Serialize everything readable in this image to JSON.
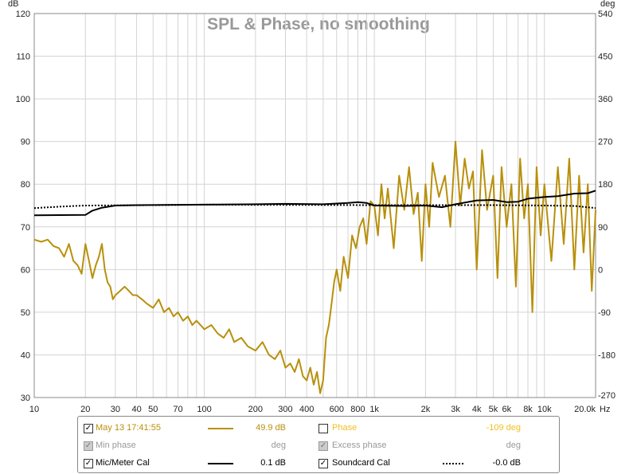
{
  "chart_data": {
    "type": "line",
    "title": "SPL & Phase, no smoothing",
    "xlabel": "Hz",
    "ylabel": "dB",
    "y2label": "deg",
    "xscale": "log",
    "xlim": [
      10,
      20000
    ],
    "ylim": [
      30,
      120
    ],
    "y2lim": [
      -270,
      540
    ],
    "grid": true,
    "x_ticks": [
      10,
      20,
      30,
      40,
      50,
      70,
      100,
      200,
      300,
      400,
      600,
      800,
      1000,
      2000,
      3000,
      4000,
      5000,
      6000,
      8000,
      10000,
      20000
    ],
    "x_tick_labels": [
      "10",
      "20",
      "30",
      "40",
      "50",
      "70",
      "100",
      "200",
      "300",
      "400",
      "600",
      "800",
      "1k",
      "2k",
      "3k",
      "4k",
      "5k",
      "6k",
      "8k",
      "10k",
      "20.0k"
    ],
    "y_ticks": [
      30,
      40,
      50,
      60,
      70,
      80,
      90,
      100,
      110,
      120
    ],
    "y2_ticks": [
      -270,
      -180,
      -90,
      0,
      90,
      180,
      270,
      360,
      450,
      540
    ],
    "colors": {
      "spl": "#b8900c",
      "cal": "#000000",
      "soundcard": "#000000",
      "phase_label": "#f0c020"
    },
    "series": [
      {
        "name": "May 13 17:41:55",
        "style": "solid",
        "color": "#b8900c",
        "x": [
          10,
          11,
          12,
          13,
          14,
          15,
          16,
          17,
          18,
          19,
          20,
          21,
          22,
          23,
          24,
          25,
          26,
          27,
          28,
          29,
          30,
          32,
          34,
          36,
          38,
          40,
          43,
          46,
          50,
          54,
          58,
          62,
          66,
          70,
          75,
          80,
          85,
          90,
          100,
          110,
          120,
          130,
          140,
          150,
          165,
          180,
          200,
          220,
          240,
          260,
          280,
          300,
          320,
          340,
          360,
          380,
          400,
          420,
          440,
          460,
          480,
          500,
          520,
          540,
          560,
          580,
          600,
          630,
          660,
          700,
          740,
          780,
          820,
          860,
          900,
          950,
          1000,
          1050,
          1100,
          1150,
          1200,
          1300,
          1400,
          1500,
          1600,
          1700,
          1800,
          1900,
          2000,
          2100,
          2200,
          2400,
          2600,
          2800,
          3000,
          3200,
          3400,
          3600,
          3800,
          4000,
          4300,
          4600,
          5000,
          5300,
          5600,
          6000,
          6400,
          6800,
          7200,
          7600,
          8000,
          8500,
          9000,
          9500,
          10000,
          11000,
          12000,
          13000,
          14000,
          15000,
          16000,
          17000,
          18000,
          19000,
          20000
        ],
        "values": [
          67,
          66.5,
          67,
          65.5,
          65,
          63,
          66,
          62,
          61,
          59,
          66,
          62,
          58,
          61,
          63,
          66,
          60,
          57,
          56,
          53,
          54,
          55,
          56,
          55,
          54,
          54,
          53,
          52,
          51,
          53,
          50,
          51,
          49,
          50,
          48,
          49,
          47,
          48,
          46,
          47,
          45,
          44,
          46,
          43,
          44,
          42,
          41,
          43,
          40,
          39,
          41,
          37,
          38,
          36,
          39,
          35,
          34,
          37,
          33,
          36,
          31,
          34,
          44,
          47,
          52,
          57,
          60,
          55,
          63,
          58,
          68,
          65,
          70,
          72,
          66,
          76,
          75,
          68,
          80,
          72,
          79,
          65,
          82,
          74,
          84,
          73,
          78,
          62,
          80,
          70,
          85,
          77,
          82,
          70,
          90,
          75,
          86,
          79,
          83,
          60,
          88,
          74,
          82,
          58,
          84,
          70,
          80,
          56,
          86,
          72,
          80,
          50,
          84,
          68,
          80,
          62,
          84,
          66,
          86,
          60,
          82,
          64,
          80,
          55,
          74
        ]
      },
      {
        "name": "Mic/Meter Cal",
        "style": "solid",
        "color": "#000000",
        "x": [
          10,
          20,
          22,
          25,
          30,
          40,
          100,
          200,
          300,
          500,
          700,
          800,
          900,
          1000,
          1500,
          2000,
          2500,
          3000,
          4000,
          5000,
          6000,
          7000,
          8000,
          10000,
          12000,
          15000,
          18000,
          20000
        ],
        "values": [
          72.7,
          72.8,
          73.8,
          74.5,
          75,
          75.1,
          75.2,
          75.3,
          75.4,
          75.3,
          75.6,
          75.8,
          75.6,
          75,
          74.9,
          75,
          74.6,
          75.3,
          76.2,
          76.3,
          75.8,
          75.9,
          76.6,
          77,
          77.2,
          77.8,
          77.9,
          78.5
        ]
      },
      {
        "name": "Soundcard Cal",
        "style": "dotted",
        "color": "#000000",
        "x": [
          10,
          15,
          20,
          50,
          100,
          1000,
          5000,
          10000,
          15000,
          20000
        ],
        "values": [
          74.4,
          74.8,
          75,
          75.1,
          75.2,
          75.1,
          75.1,
          75,
          74.9,
          74.4
        ]
      }
    ]
  },
  "legend": {
    "rows": [
      {
        "label": "May 13 17:41:55",
        "value": "49.9 dB",
        "checked": true
      },
      {
        "label": "Phase",
        "value": "-109 deg",
        "checked": false
      },
      {
        "label": "Min phase",
        "value": "deg",
        "checked": true
      },
      {
        "label": "Excess phase",
        "value": "deg",
        "checked": true
      },
      {
        "label": "Mic/Meter Cal",
        "value": "0.1 dB",
        "checked": true
      },
      {
        "label": "Soundcard Cal",
        "value": "-0.0 dB",
        "checked": true
      }
    ]
  }
}
